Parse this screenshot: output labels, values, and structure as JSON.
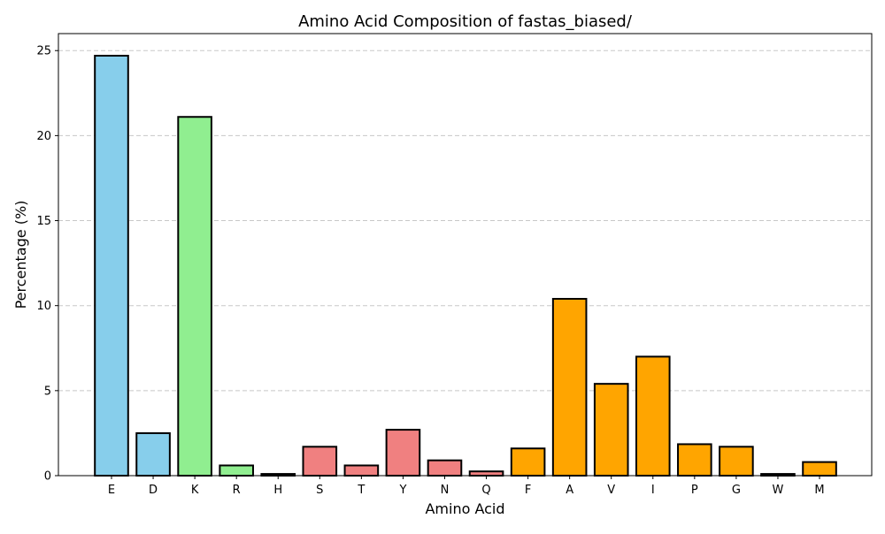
{
  "chart_data": {
    "type": "bar",
    "title": "Amino Acid Composition of fastas_biased/",
    "xlabel": "Amino Acid",
    "ylabel": "Percentage (%)",
    "categories": [
      "E",
      "D",
      "K",
      "R",
      "H",
      "S",
      "T",
      "Y",
      "N",
      "Q",
      "F",
      "A",
      "V",
      "I",
      "P",
      "G",
      "W",
      "M"
    ],
    "values": [
      24.7,
      2.5,
      21.1,
      0.6,
      0.1,
      1.7,
      0.6,
      2.7,
      0.9,
      0.25,
      1.6,
      10.4,
      5.4,
      7.0,
      1.85,
      1.7,
      0.1,
      0.8
    ],
    "bar_colors": [
      "#87ceeb",
      "#87ceeb",
      "#90ee90",
      "#90ee90",
      "#90ee90",
      "#f08080",
      "#f08080",
      "#f08080",
      "#f08080",
      "#f08080",
      "#ffa500",
      "#ffa500",
      "#ffa500",
      "#ffa500",
      "#ffa500",
      "#ffa500",
      "#ffa500",
      "#ffa500"
    ],
    "edge_color": "#000000",
    "ylim": [
      0,
      26
    ],
    "yticks": [
      0,
      5,
      10,
      15,
      20,
      25
    ],
    "grid": "y-dashed"
  }
}
